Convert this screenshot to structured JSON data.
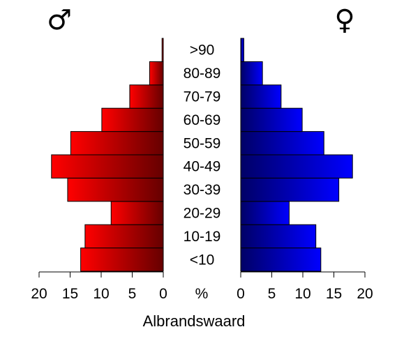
{
  "chart_data": {
    "type": "bar",
    "orientation": "horizontal-pyramid",
    "title": "Albrandswaard",
    "symbols": {
      "left": "♂",
      "right": "♀"
    },
    "center_axis_label": "%",
    "categories": [
      "<10",
      "10-19",
      "20-29",
      "30-39",
      "40-49",
      "50-59",
      "60-69",
      "70-79",
      "80-89",
      ">90"
    ],
    "series": [
      {
        "side": "left",
        "values": [
          13.3,
          12.6,
          8.4,
          15.4,
          18.0,
          14.9,
          9.9,
          5.4,
          2.2,
          0.2
        ]
      },
      {
        "side": "right",
        "values": [
          12.9,
          12.1,
          7.8,
          15.8,
          18.0,
          13.4,
          9.9,
          6.5,
          3.5,
          0.5
        ]
      }
    ],
    "xlim": [
      0,
      20
    ],
    "xticks": [
      0,
      5,
      10,
      15,
      20
    ],
    "colors": {
      "left_light": "#ff0000",
      "left_dark": "#660000",
      "right_light": "#0000ff",
      "right_dark": "#000066"
    }
  }
}
